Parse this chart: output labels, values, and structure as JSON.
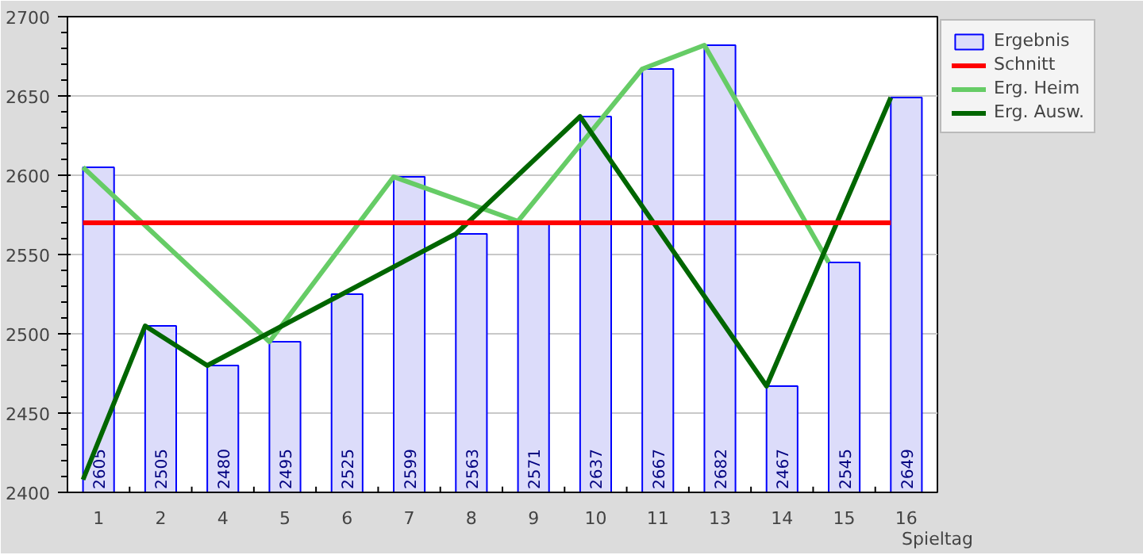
{
  "chart_data": {
    "type": "bar",
    "xlabel": "Spieltag",
    "categories": [
      "1",
      "2",
      "4",
      "5",
      "6",
      "7",
      "8",
      "9",
      "10",
      "11",
      "13",
      "14",
      "15",
      "16"
    ],
    "series": [
      {
        "name": "Ergebnis",
        "color": "#dcdcfa",
        "values": [
          2605,
          2505,
          2480,
          2495,
          2525,
          2599,
          2563,
          2571,
          2637,
          2667,
          2682,
          2467,
          2545,
          2649
        ],
        "value_labels": [
          "2605",
          "2505",
          "2480",
          "2495",
          "2525",
          "2599",
          "2563",
          "2571",
          "2637",
          "2667",
          "2682",
          "2467",
          "2545",
          "2649"
        ]
      },
      {
        "name": "Erg. Heim",
        "type": "line",
        "color": "#66cc66",
        "x": [
          "1",
          "5",
          "7",
          "9",
          "11",
          "13",
          "15"
        ],
        "values": [
          2605,
          2495,
          2599,
          2571,
          2667,
          2682,
          2545
        ]
      },
      {
        "name": "Erg. Ausw.",
        "type": "line",
        "color": "#006600",
        "x": [
          "1",
          "2",
          "4",
          "8",
          "10",
          "14",
          "16"
        ],
        "values": [
          2408,
          2505,
          2480,
          2563,
          2637,
          2467,
          2649
        ]
      }
    ],
    "ref_lines": [
      {
        "axis": "y",
        "value": 2570,
        "label": "Schnitt",
        "color": "#ff0000"
      }
    ],
    "ylim": [
      2400,
      2700
    ],
    "yticks": [
      2400,
      2450,
      2500,
      2550,
      2600,
      2650,
      2700
    ],
    "grid": "y",
    "legend": "right"
  }
}
